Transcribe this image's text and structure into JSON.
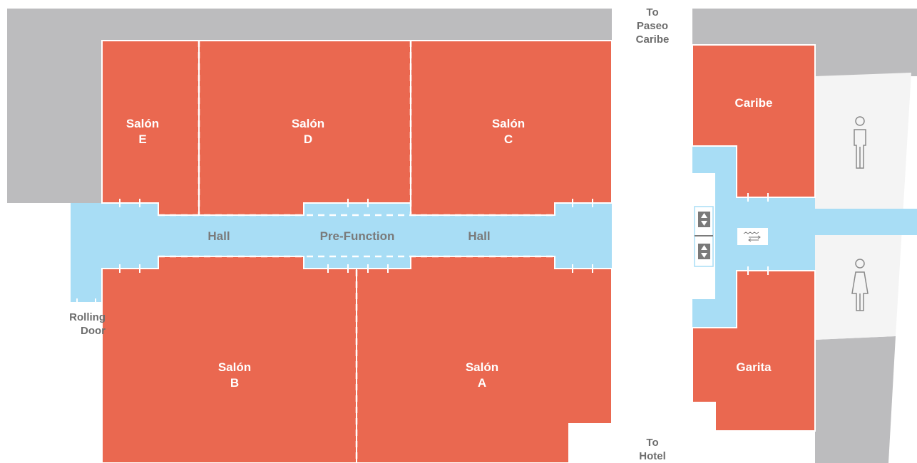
{
  "colors": {
    "room": "#EA6850",
    "hall": "#A8DDF5",
    "wall": "#BCBCBE",
    "restroom_bg": "#F4F4F4",
    "line": "#FFFFFF",
    "label_room": "#FFFFFF",
    "label_hall": "#7A7A7A",
    "label_dir": "#6D6D6D"
  },
  "rooms": {
    "salon_e": "Salón\nE",
    "salon_d": "Salón\nD",
    "salon_c": "Salón\nC",
    "salon_b": "Salón\nB",
    "salon_a": "Salón\nA",
    "caribe": "Caribe",
    "garita": "Garita"
  },
  "halls": {
    "hall_left": "Hall",
    "prefunction": "Pre-Function",
    "hall_right": "Hall"
  },
  "directions": {
    "to_paseo": "To\nPaseo\nCaribe",
    "rolling_door": "Rolling\nDoor",
    "to_hotel": "To\nHotel"
  },
  "icons": [
    "elevator-icon",
    "escalator-icon",
    "mens-restroom-icon",
    "womens-restroom-icon"
  ]
}
